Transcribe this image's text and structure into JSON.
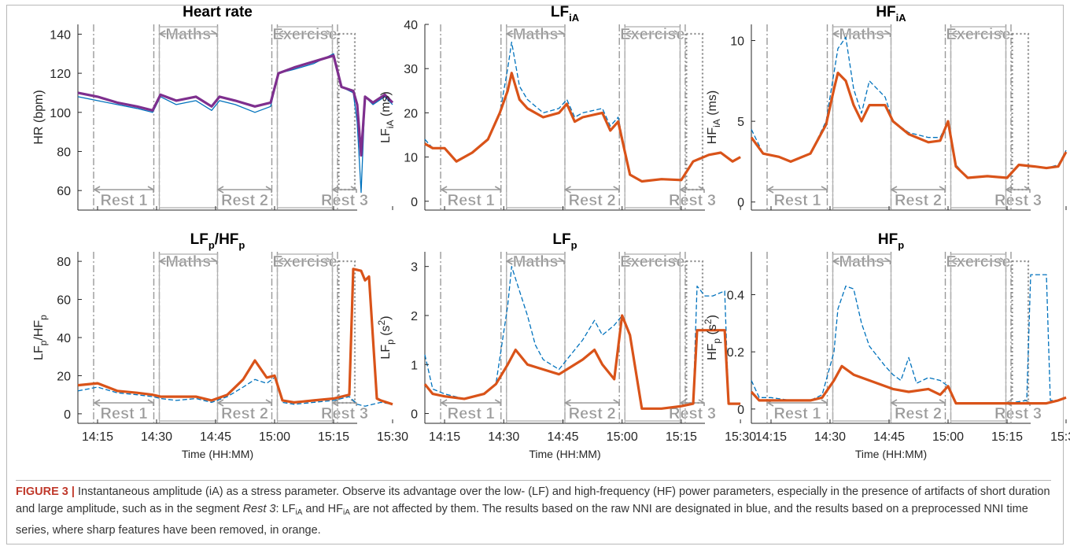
{
  "figure": {
    "colors": {
      "raw": "#0072BD",
      "processed": "#D95319",
      "hr_processed": "#7E2F8E",
      "axis": "#262626",
      "segment": "#9a9a9a"
    },
    "segment_labels": {
      "rest1": "Rest 1",
      "maths": "Maths",
      "rest2": "Rest 2",
      "exercise": "Exercise",
      "rest3": "Rest 3"
    },
    "time_ticks": [
      "14:15",
      "14:30",
      "14:45",
      "15:00",
      "15:15",
      "15:30"
    ],
    "xlabel": "Time (HH:MM)"
  },
  "chart_data": [
    {
      "id": "hr",
      "type": "line",
      "title": {
        "base": "Heart rate",
        "sub": ""
      },
      "ylabel": {
        "base": "HR (bpm)",
        "sub": "",
        "sup": "",
        "tail": ""
      },
      "ylim": [
        50,
        145
      ],
      "yticks": [
        60,
        80,
        100,
        120,
        140
      ],
      "series": [
        {
          "style": "raw",
          "x": [
            "14:10",
            "14:15",
            "14:20",
            "14:25",
            "14:29",
            "14:31",
            "14:35",
            "14:40",
            "14:44",
            "14:46",
            "14:50",
            "14:55",
            "14:59",
            "15:01",
            "15:05",
            "15:10",
            "15:15",
            "15:17",
            "15:20",
            "15:21",
            "15:22",
            "15:23",
            "15:25",
            "15:28",
            "15:30"
          ],
          "y": [
            108,
            106,
            104,
            102,
            100,
            108,
            104,
            106,
            101,
            106,
            104,
            100,
            103,
            120,
            122,
            125,
            130,
            113,
            110,
            95,
            59,
            108,
            104,
            108,
            104
          ]
        },
        {
          "style": "hr_processed",
          "x": [
            "14:10",
            "14:15",
            "14:20",
            "14:25",
            "14:29",
            "14:31",
            "14:35",
            "14:40",
            "14:44",
            "14:46",
            "14:50",
            "14:55",
            "14:59",
            "15:01",
            "15:05",
            "15:10",
            "15:15",
            "15:17",
            "15:20",
            "15:21",
            "15:22",
            "15:23",
            "15:25",
            "15:28",
            "15:30"
          ],
          "y": [
            110,
            108,
            105,
            103,
            101,
            109,
            106,
            108,
            103,
            108,
            106,
            103,
            105,
            120,
            123,
            126,
            129,
            113,
            111,
            104,
            78,
            108,
            105,
            109,
            105
          ]
        }
      ]
    },
    {
      "id": "lfia",
      "type": "line",
      "title": {
        "base": "LF",
        "sub": "iA"
      },
      "ylabel": {
        "base": "LF",
        "sub": "iA",
        "sup": "",
        "tail": " (ms)"
      },
      "ylim": [
        -2,
        40
      ],
      "yticks": [
        0,
        10,
        20,
        30,
        40
      ],
      "series": [
        {
          "style": "raw",
          "x": [
            "14:10",
            "14:12",
            "14:15",
            "14:18",
            "14:22",
            "14:26",
            "14:29",
            "14:31",
            "14:32",
            "14:34",
            "14:36",
            "14:40",
            "14:44",
            "14:46",
            "14:48",
            "14:50",
            "14:55",
            "14:57",
            "14:59",
            "15:02",
            "15:05",
            "15:10",
            "15:15",
            "15:18",
            "15:22",
            "15:25",
            "15:28",
            "15:30"
          ],
          "y": [
            14,
            12,
            12,
            9,
            11,
            14,
            20,
            30,
            36,
            26,
            23,
            20,
            21,
            23,
            19,
            20,
            21,
            17,
            19,
            6,
            4.5,
            5,
            4.8,
            9,
            10.5,
            11,
            9,
            10
          ]
        },
        {
          "style": "processed",
          "x": [
            "14:10",
            "14:12",
            "14:15",
            "14:18",
            "14:22",
            "14:26",
            "14:29",
            "14:31",
            "14:32",
            "14:34",
            "14:36",
            "14:40",
            "14:44",
            "14:46",
            "14:48",
            "14:50",
            "14:55",
            "14:57",
            "14:59",
            "15:02",
            "15:05",
            "15:10",
            "15:15",
            "15:18",
            "15:22",
            "15:25",
            "15:28",
            "15:30"
          ],
          "y": [
            13,
            12,
            12,
            9,
            11,
            14,
            20,
            25,
            29,
            23,
            21,
            19,
            20,
            22,
            18,
            19,
            20,
            16,
            18,
            6,
            4.5,
            5,
            4.8,
            9,
            10.5,
            11,
            9,
            10
          ]
        }
      ]
    },
    {
      "id": "hfia",
      "type": "line",
      "title": {
        "base": "HF",
        "sub": "iA"
      },
      "ylabel": {
        "base": "HF",
        "sub": "iA",
        "sup": "",
        "tail": " (ms)"
      },
      "ylim": [
        -0.5,
        11
      ],
      "yticks": [
        0,
        5,
        10
      ],
      "series": [
        {
          "style": "raw",
          "x": [
            "14:10",
            "14:13",
            "14:17",
            "14:20",
            "14:25",
            "14:29",
            "14:31",
            "14:32",
            "14:34",
            "14:36",
            "14:38",
            "14:40",
            "14:44",
            "14:46",
            "14:50",
            "14:55",
            "14:58",
            "15:00",
            "15:02",
            "15:05",
            "15:10",
            "15:15",
            "15:18",
            "15:22",
            "15:25",
            "15:28",
            "15:30"
          ],
          "y": [
            4.5,
            3,
            2.8,
            2.5,
            3,
            5,
            8,
            9.5,
            10.2,
            7,
            5.5,
            7.5,
            6.5,
            5,
            4.3,
            4,
            4,
            5,
            2.3,
            1.5,
            1.6,
            1.5,
            2.3,
            2.2,
            2.1,
            2.3,
            3.2
          ]
        },
        {
          "style": "processed",
          "x": [
            "14:10",
            "14:13",
            "14:17",
            "14:20",
            "14:25",
            "14:29",
            "14:31",
            "14:32",
            "14:34",
            "14:36",
            "14:38",
            "14:40",
            "14:44",
            "14:46",
            "14:50",
            "14:55",
            "14:58",
            "15:00",
            "15:02",
            "15:05",
            "15:10",
            "15:15",
            "15:18",
            "15:22",
            "15:25",
            "15:28",
            "15:30"
          ],
          "y": [
            4,
            3,
            2.8,
            2.5,
            3,
            4.8,
            7,
            8,
            7.5,
            6,
            5,
            6,
            6,
            5,
            4.2,
            3.7,
            3.8,
            5,
            2.2,
            1.5,
            1.6,
            1.5,
            2.3,
            2.2,
            2.1,
            2.2,
            3.1
          ]
        }
      ]
    },
    {
      "id": "lfhf",
      "type": "line",
      "title": {
        "base": "LF",
        "sub": "p",
        "mid": "/HF",
        "sub2": "p"
      },
      "ylabel": {
        "base": "LF",
        "sub": "p",
        "sup": "",
        "tail": "/HF",
        "tail_sub": "p"
      },
      "ylim": [
        -5,
        85
      ],
      "yticks": [
        0,
        20,
        40,
        60,
        80
      ],
      "series": [
        {
          "style": "raw",
          "x": [
            "14:10",
            "14:15",
            "14:20",
            "14:25",
            "14:29",
            "14:31",
            "14:35",
            "14:40",
            "14:44",
            "14:48",
            "14:52",
            "14:55",
            "14:58",
            "15:00",
            "15:02",
            "15:05",
            "15:10",
            "15:15",
            "15:19",
            "15:21",
            "15:23",
            "15:25",
            "15:27",
            "15:30"
          ],
          "y": [
            12,
            14,
            11,
            10,
            9,
            8,
            7,
            8,
            6,
            9,
            14,
            18,
            16,
            19,
            6,
            5,
            6,
            7,
            9,
            5,
            4,
            5,
            6,
            5
          ]
        },
        {
          "style": "processed",
          "x": [
            "14:10",
            "14:15",
            "14:20",
            "14:25",
            "14:29",
            "14:31",
            "14:35",
            "14:40",
            "14:44",
            "14:48",
            "14:52",
            "14:55",
            "14:58",
            "15:00",
            "15:02",
            "15:05",
            "15:10",
            "15:15",
            "15:19",
            "15:20",
            "15:22",
            "15:23",
            "15:24",
            "15:26",
            "15:27",
            "15:30"
          ],
          "y": [
            15,
            16,
            12,
            11,
            10,
            9,
            9,
            9,
            7,
            10,
            18,
            28,
            19,
            20,
            7,
            6,
            7,
            8,
            10,
            76,
            75,
            70,
            72,
            8,
            7,
            5
          ]
        }
      ]
    },
    {
      "id": "lfp",
      "type": "line",
      "title": {
        "base": "LF",
        "sub": "p"
      },
      "ylabel": {
        "base": "LF",
        "sub": "p",
        "sup": "",
        "tail": " (s",
        "tail_sup": "2",
        "tail_end": ")"
      },
      "ylim": [
        -0.2,
        3.3
      ],
      "yticks": [
        0,
        1,
        2,
        3
      ],
      "series": [
        {
          "style": "raw",
          "x": [
            "14:10",
            "14:12",
            "14:15",
            "14:20",
            "14:25",
            "14:28",
            "14:31",
            "14:32",
            "14:34",
            "14:36",
            "14:38",
            "14:40",
            "14:44",
            "14:46",
            "14:50",
            "14:53",
            "14:55",
            "14:58",
            "15:00",
            "15:02",
            "15:05",
            "15:10",
            "15:15",
            "15:18",
            "15:19",
            "15:21",
            "15:23",
            "15:26",
            "15:27",
            "15:30"
          ],
          "y": [
            1.2,
            0.5,
            0.4,
            0.3,
            0.4,
            0.6,
            2.2,
            3.0,
            2.5,
            2.0,
            1.4,
            1.1,
            0.9,
            1.1,
            1.5,
            1.9,
            1.6,
            1.8,
            2.0,
            1.6,
            0.1,
            0.1,
            0.15,
            0.2,
            2.6,
            2.4,
            2.4,
            2.5,
            0.2,
            0.2
          ]
        },
        {
          "style": "processed",
          "x": [
            "14:10",
            "14:12",
            "14:15",
            "14:20",
            "14:25",
            "14:28",
            "14:31",
            "14:33",
            "14:36",
            "14:40",
            "14:44",
            "14:46",
            "14:50",
            "14:53",
            "14:55",
            "14:58",
            "15:00",
            "15:02",
            "15:05",
            "15:10",
            "15:15",
            "15:18",
            "15:19",
            "15:23",
            "15:26",
            "15:27",
            "15:30"
          ],
          "y": [
            0.6,
            0.4,
            0.35,
            0.3,
            0.4,
            0.6,
            1.0,
            1.3,
            1.0,
            0.9,
            0.8,
            0.9,
            1.1,
            1.3,
            1.0,
            0.7,
            2.0,
            1.6,
            0.1,
            0.1,
            0.15,
            0.2,
            1.7,
            1.7,
            1.7,
            0.2,
            0.2
          ]
        }
      ]
    },
    {
      "id": "hfp",
      "type": "line",
      "title": {
        "base": "HF",
        "sub": "p"
      },
      "ylabel": {
        "base": "HF",
        "sub": "p",
        "sup": "",
        "tail": " (s",
        "tail_sup": "2",
        "tail_end": ")"
      },
      "ylim": [
        -0.05,
        0.55
      ],
      "yticks": [
        0,
        0.2,
        0.4
      ],
      "series": [
        {
          "style": "raw",
          "x": [
            "14:10",
            "14:12",
            "14:15",
            "14:20",
            "14:25",
            "14:28",
            "14:31",
            "14:32",
            "14:34",
            "14:36",
            "14:38",
            "14:40",
            "14:44",
            "14:46",
            "14:48",
            "14:50",
            "14:52",
            "14:55",
            "14:58",
            "15:00",
            "15:02",
            "15:05",
            "15:10",
            "15:15",
            "15:20",
            "15:21",
            "15:25",
            "15:26",
            "15:28",
            "15:30"
          ],
          "y": [
            0.1,
            0.04,
            0.04,
            0.03,
            0.03,
            0.05,
            0.2,
            0.35,
            0.43,
            0.42,
            0.3,
            0.22,
            0.15,
            0.12,
            0.1,
            0.18,
            0.09,
            0.11,
            0.1,
            0.08,
            0.02,
            0.02,
            0.02,
            0.02,
            0.03,
            0.47,
            0.47,
            0.03,
            0.03,
            0.04
          ]
        },
        {
          "style": "processed",
          "x": [
            "14:10",
            "14:12",
            "14:15",
            "14:20",
            "14:25",
            "14:28",
            "14:31",
            "14:33",
            "14:36",
            "14:40",
            "14:44",
            "14:46",
            "14:50",
            "14:55",
            "14:58",
            "15:00",
            "15:02",
            "15:05",
            "15:10",
            "15:15",
            "15:20",
            "15:25",
            "15:28",
            "15:30"
          ],
          "y": [
            0.06,
            0.03,
            0.03,
            0.03,
            0.03,
            0.04,
            0.1,
            0.15,
            0.12,
            0.1,
            0.08,
            0.07,
            0.06,
            0.07,
            0.05,
            0.08,
            0.02,
            0.02,
            0.02,
            0.02,
            0.02,
            0.02,
            0.03,
            0.04
          ]
        }
      ]
    }
  ],
  "caption": {
    "lead": "FIGURE 3 |",
    "p1": " Instantaneous amplitude (iA) as a stress parameter. Observe its advantage over the low- (LF) and high-frequency (HF) power parameters, especially in the presence of artifacts of short duration and large amplitude, such as in the segment ",
    "seg": "Rest 3",
    "p2": ": LF",
    "sub1": "iA",
    "p3": " and HF",
    "sub2": "iA",
    "p4": " are not affected by them. The results based on the raw NNI are designated in blue, and the results based on a preprocessed NNI time series, where sharp features have been removed, in orange."
  }
}
